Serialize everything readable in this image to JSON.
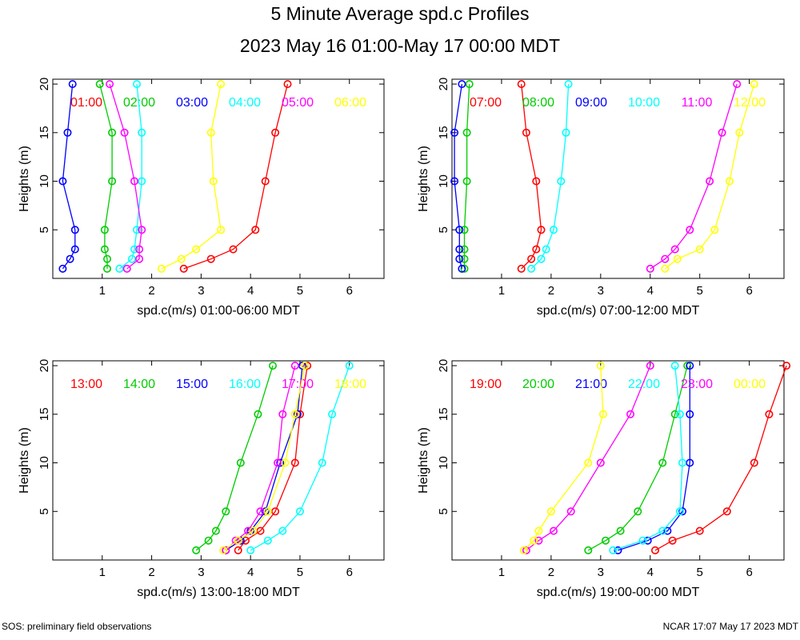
{
  "header": {
    "title": "5 Minute Average spd.c Profiles",
    "subtitle": "2023 May 16 01:00-May 17 00:00 MDT"
  },
  "footer": {
    "left": "SOS: preliminary field observations",
    "right": "NCAR 17:07 May 17 2023 MDT"
  },
  "chart_data": [
    {
      "type": "line",
      "xlabel": "spd.c(m/s) 01:00-06:00 MDT",
      "ylabel": "Heights (m)",
      "xlim": [
        0,
        6.7
      ],
      "ylim": [
        0,
        20.5
      ],
      "xticks": [
        1,
        2,
        3,
        4,
        5,
        6
      ],
      "yticks": [
        5,
        10,
        15,
        20
      ],
      "heights": [
        1,
        2,
        3,
        5,
        10,
        15,
        20
      ],
      "series": [
        {
          "name": "01:00",
          "color": "#ff0000",
          "x": [
            2.65,
            3.2,
            3.65,
            4.1,
            4.3,
            4.5,
            4.75
          ]
        },
        {
          "name": "02:00",
          "color": "#00cc00",
          "x": [
            1.1,
            1.1,
            1.05,
            1.05,
            1.2,
            1.2,
            0.95
          ]
        },
        {
          "name": "03:00",
          "color": "#0000ff",
          "x": [
            0.2,
            0.35,
            0.45,
            0.45,
            0.2,
            0.3,
            0.4
          ]
        },
        {
          "name": "04:00",
          "color": "#00ffff",
          "x": [
            1.35,
            1.6,
            1.65,
            1.7,
            1.8,
            1.8,
            1.7
          ]
        },
        {
          "name": "05:00",
          "color": "#ff00ff",
          "x": [
            1.5,
            1.75,
            1.75,
            1.8,
            1.65,
            1.45,
            1.15
          ]
        },
        {
          "name": "06:00",
          "color": "#ffff00",
          "x": [
            2.2,
            2.6,
            2.9,
            3.4,
            3.25,
            3.2,
            3.4
          ]
        }
      ]
    },
    {
      "type": "line",
      "xlabel": "spd.c(m/s) 07:00-12:00 MDT",
      "ylabel": "Heights (m)",
      "xlim": [
        0,
        6.7
      ],
      "ylim": [
        0,
        20.5
      ],
      "xticks": [
        1,
        2,
        3,
        4,
        5,
        6
      ],
      "yticks": [
        5,
        10,
        15,
        20
      ],
      "heights": [
        1,
        2,
        3,
        5,
        10,
        15,
        20
      ],
      "series": [
        {
          "name": "07:00",
          "color": "#ff0000",
          "x": [
            1.4,
            1.6,
            1.7,
            1.8,
            1.7,
            1.5,
            1.4
          ]
        },
        {
          "name": "08:00",
          "color": "#00cc00",
          "x": [
            0.25,
            0.25,
            0.25,
            0.25,
            0.3,
            0.3,
            0.35
          ]
        },
        {
          "name": "09:00",
          "color": "#0000ff",
          "x": [
            0.2,
            0.15,
            0.15,
            0.15,
            0.05,
            0.05,
            0.2
          ]
        },
        {
          "name": "10:00",
          "color": "#00ffff",
          "x": [
            1.6,
            1.8,
            1.9,
            2.05,
            2.2,
            2.3,
            2.35
          ]
        },
        {
          "name": "11:00",
          "color": "#ff00ff",
          "x": [
            4.0,
            4.3,
            4.5,
            4.8,
            5.2,
            5.45,
            5.75
          ]
        },
        {
          "name": "12:00",
          "color": "#ffff00",
          "x": [
            4.3,
            4.55,
            5.0,
            5.3,
            5.6,
            5.8,
            6.1
          ]
        }
      ]
    },
    {
      "type": "line",
      "xlabel": "spd.c(m/s) 13:00-18:00 MDT",
      "ylabel": "Heights (m)",
      "xlim": [
        0,
        6.7
      ],
      "ylim": [
        0,
        20.5
      ],
      "xticks": [
        1,
        2,
        3,
        4,
        5,
        6
      ],
      "yticks": [
        5,
        10,
        15,
        20
      ],
      "heights": [
        1,
        2,
        3,
        5,
        10,
        15,
        20
      ],
      "series": [
        {
          "name": "13:00",
          "color": "#ff0000",
          "x": [
            3.75,
            3.9,
            4.2,
            4.5,
            4.9,
            5.0,
            5.15
          ]
        },
        {
          "name": "14:00",
          "color": "#00cc00",
          "x": [
            2.9,
            3.15,
            3.3,
            3.5,
            3.8,
            4.15,
            4.45
          ]
        },
        {
          "name": "15:00",
          "color": "#0000ff",
          "x": [
            3.5,
            3.8,
            4.0,
            4.3,
            4.6,
            4.95,
            5.05
          ]
        },
        {
          "name": "16:00",
          "color": "#00ffff",
          "x": [
            4.0,
            4.35,
            4.65,
            5.0,
            5.45,
            5.65,
            6.0
          ]
        },
        {
          "name": "17:00",
          "color": "#ff00ff",
          "x": [
            3.5,
            3.7,
            3.95,
            4.2,
            4.55,
            4.65,
            4.9
          ]
        },
        {
          "name": "18:00",
          "color": "#ffff00",
          "x": [
            3.45,
            3.75,
            4.05,
            4.35,
            4.7,
            4.9,
            5.1
          ]
        }
      ]
    },
    {
      "type": "line",
      "xlabel": "spd.c(m/s) 19:00-00:00 MDT",
      "ylabel": "Heights (m)",
      "xlim": [
        0,
        6.7
      ],
      "ylim": [
        0,
        20.5
      ],
      "xticks": [
        1,
        2,
        3,
        4,
        5,
        6
      ],
      "yticks": [
        5,
        10,
        15,
        20
      ],
      "heights": [
        1,
        2,
        3,
        5,
        10,
        15,
        20
      ],
      "series": [
        {
          "name": "19:00",
          "color": "#ff0000",
          "x": [
            4.1,
            4.45,
            5.0,
            5.55,
            6.1,
            6.4,
            6.75
          ]
        },
        {
          "name": "20:00",
          "color": "#00cc00",
          "x": [
            2.75,
            3.1,
            3.4,
            3.75,
            4.25,
            4.5,
            4.75
          ]
        },
        {
          "name": "21:00",
          "color": "#0000ff",
          "x": [
            3.35,
            3.95,
            4.35,
            4.65,
            4.8,
            4.8,
            4.8
          ]
        },
        {
          "name": "22:00",
          "color": "#00ffff",
          "x": [
            3.25,
            3.85,
            4.25,
            4.6,
            4.65,
            4.6,
            4.5
          ]
        },
        {
          "name": "23:00",
          "color": "#ff00ff",
          "x": [
            1.5,
            1.75,
            2.05,
            2.4,
            3.0,
            3.6,
            4.0
          ]
        },
        {
          "name": "00:00",
          "color": "#ffff00",
          "x": [
            1.45,
            1.65,
            1.75,
            2.0,
            2.75,
            3.05,
            3.0
          ]
        }
      ]
    }
  ]
}
